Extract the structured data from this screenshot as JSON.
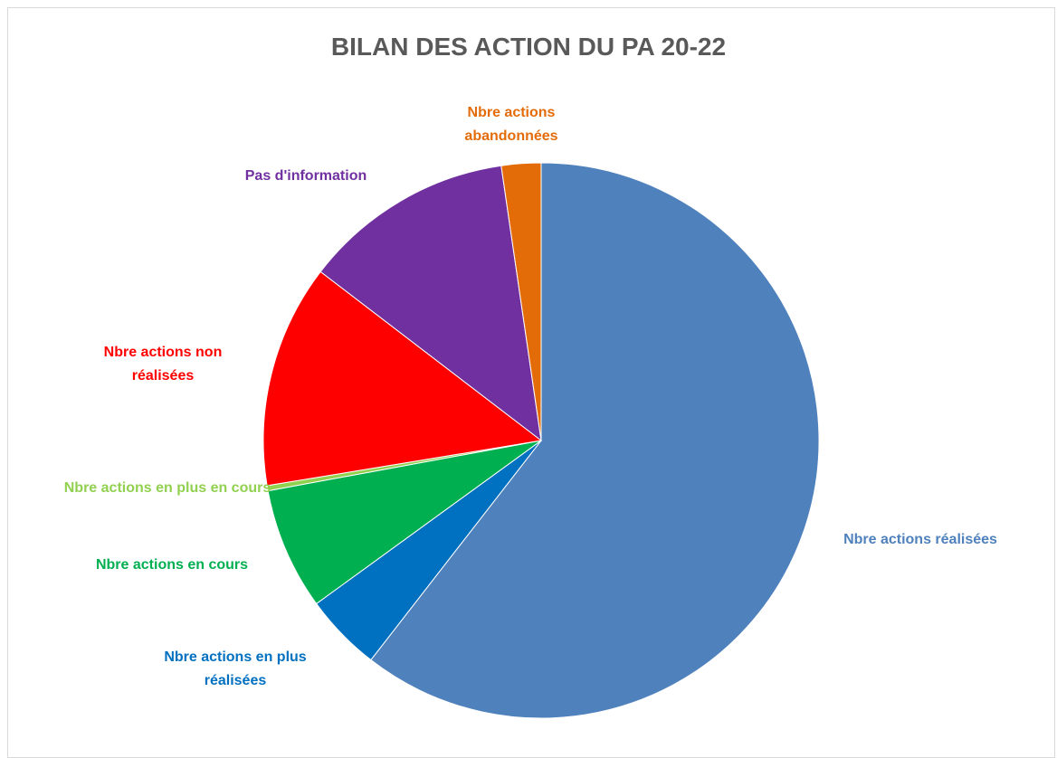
{
  "chart_data": {
    "type": "pie",
    "title": "BILAN DES ACTION DU PA 20-22",
    "categories": [
      "Nbre actions réalisées",
      "Nbre actions en plus réalisées",
      "Nbre actions en cours",
      "Nbre actions en plus en cours",
      "Nbre actions non réalisées",
      "Pas d'information",
      "Nbre actions abandonnées"
    ],
    "values": [
      60.5,
      4.5,
      7.1,
      0.3,
      13,
      12.3,
      2.3
    ],
    "colors": [
      "#4f81bd",
      "#0070c0",
      "#00b050",
      "#92d050",
      "#ff0000",
      "#7030a0",
      "#e36c09"
    ]
  }
}
